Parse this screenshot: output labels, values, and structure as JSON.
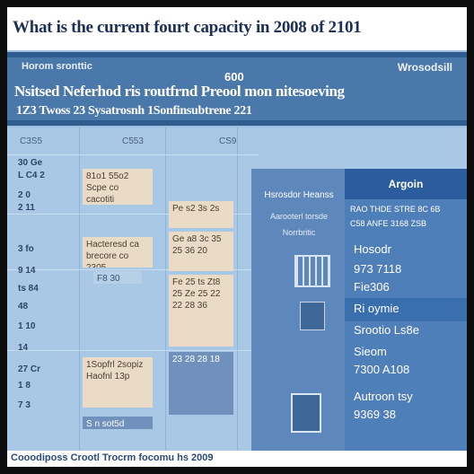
{
  "title": "What is the current fourt capacity in 2008 of 2101",
  "header": {
    "left_small": "Horom sronttic",
    "center_small": "600",
    "right_small": "Wrosodsill",
    "main": "Nsitsed Neferhod ris routfrnd Preool mon nitesoeving",
    "sub": "1Z3 Twoss 23 Sysatrosnh 1Sonfinsubtrene 221"
  },
  "columns": [
    "C3S5",
    "C553",
    "CS9"
  ],
  "row_labels": [
    "30 Ge",
    "L C4 2",
    "2 0",
    "2 11",
    "3 fo",
    "9 14",
    "ts 84",
    "48",
    "1 10",
    "14",
    "27 Cr",
    "1 8",
    "7 3"
  ],
  "cells": {
    "c1_top": "81o1 55o2 Scpe co cacotiti",
    "c1_mid": "Hacteresd ca brecore co 2305",
    "c1_low": "F8 30",
    "c1_bottom": "1Sopfrl 2sopiz Haofnl 13p",
    "c1_footer": "S n sot5d",
    "c2_top": "Pe  s2  3s  2s",
    "c2_mid": "Ge a8  3c  35  25  36  20",
    "c2_low": "Fe 25 ts  Zt8 25 Ze 25  22 22  28 36",
    "c2_bottom": "23 28 28 18"
  },
  "mid_panel": {
    "title": "Hsrosdor Heanss",
    "line1": "Aarooterl torsde",
    "line2": "Norrbritic"
  },
  "right_panel": {
    "header": "Argoin",
    "row1": "RAO THDE STRE 8C 6B",
    "row2": "C58 ANFE 3168 ZSB",
    "big1": "Hosodr",
    "big2": "973 7118",
    "big3": "Fie306",
    "big4": "Ri oymie",
    "big5": "Srootio Ls8e",
    "big6": "Sieom",
    "big7": "7300 A108",
    "big8": "Autroon tsy",
    "big9": "9369 38"
  },
  "footer": "Cooodiposs Crootl Trocrm focomu hs 2009"
}
